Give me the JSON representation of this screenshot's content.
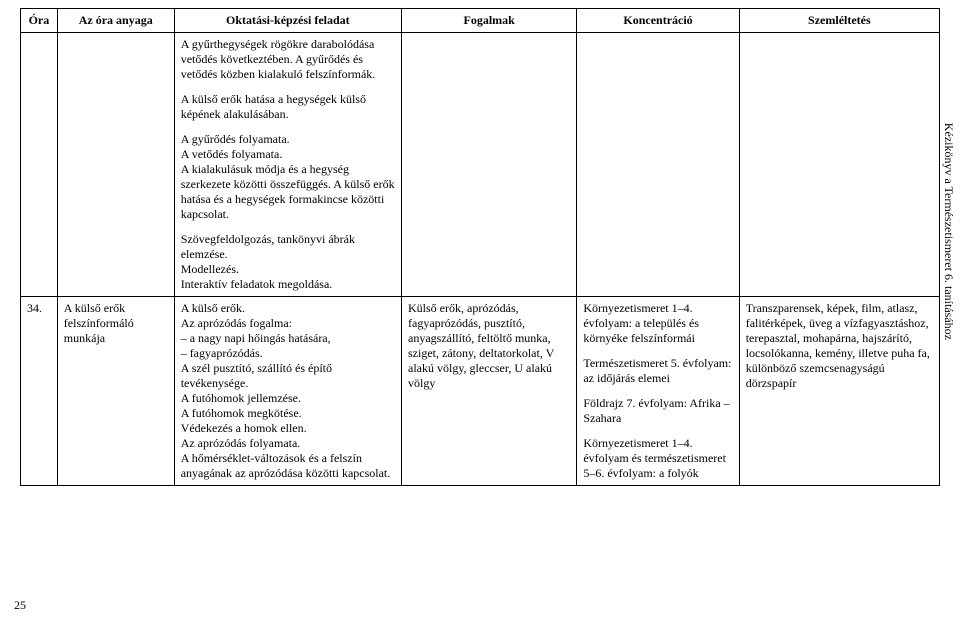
{
  "headers": {
    "ora": "Óra",
    "anyag": "Az óra anyaga",
    "okt": "Oktatási-képzési feladat",
    "fog": "Fogalmak",
    "kon": "Koncentráció",
    "szem": "Szemléltetés"
  },
  "row1": {
    "okt_p1": "A gyűrthegységek rögökre darabolódása vetődés következtében. A gyűrődés és vetődés közben kialakuló felszínformák.",
    "okt_p2": "A külső erők hatása a hegységek külső képének alakulásában.",
    "okt_p3": "A gyűrődés folyamata.",
    "okt_p4": "A vetődés folyamata.",
    "okt_p5": "A kialakulásuk módja és a hegység szerkezete közötti összefüggés. A külső erők hatása és a hegységek formakincse közötti kapcsolat.",
    "okt_p6": "Szövegfeldolgozás, tankönyvi ábrák elemzése.",
    "okt_p7": "Modellezés.",
    "okt_p8": "Interaktív feladatok megoldása."
  },
  "row2": {
    "ora": "34.",
    "anyag": "A külső erők felszínformáló munkája",
    "okt_l1": "A külső erők.",
    "okt_l2": "Az aprózódás fogalma:",
    "okt_l3": "– a nagy napi hőingás hatására,",
    "okt_l4": "– fagyaprózódás.",
    "okt_l5": "A szél pusztító, szállító és építő tevékenysége.",
    "okt_l6": "A futóhomok  jellemzése.",
    "okt_l7": "A futóhomok  megkötése.",
    "okt_l8": "Védekezés a homok ellen.",
    "okt_l9": "Az aprózódás folyamata.",
    "okt_l10": "A hőmérséklet-változások és a felszín anyagának az aprózódása közötti kapcsolat.",
    "fog": "Külső erők, aprózódás, fagyaprózódás, pusztító, anyagszállító, feltöltő munka, sziget, zátony, deltatorkolat, V alakú völgy, gleccser, U alakú völgy",
    "kon_l1": "Környezetismeret 1–4. évfolyam: a település és környéke felszínformái",
    "kon_l2": "Természetismeret 5. évfolyam: az időjárás elemei",
    "kon_l3": "Földrajz 7. évfolyam: Afrika – Szahara",
    "kon_l4": "Környezetismeret 1–4. évfolyam és természetismeret 5–6. évfolyam: a folyók",
    "szem": "Transzparensek, képek, film, atlasz, falitérképek, üveg a vízfagyasztáshoz, terepasztal, mohapárna, hajszárító, locsolókanna, kemény, illetve puha fa, különböző szemcsenagyságú dörzspapír"
  },
  "side": "Kézikönyv a Természetismeret 6. tanításához",
  "pagenum": "25",
  "style": {
    "font_family": "Times New Roman",
    "font_size_pt": 10,
    "border_color": "#000000",
    "background": "#ffffff",
    "text_color": "#000000"
  }
}
